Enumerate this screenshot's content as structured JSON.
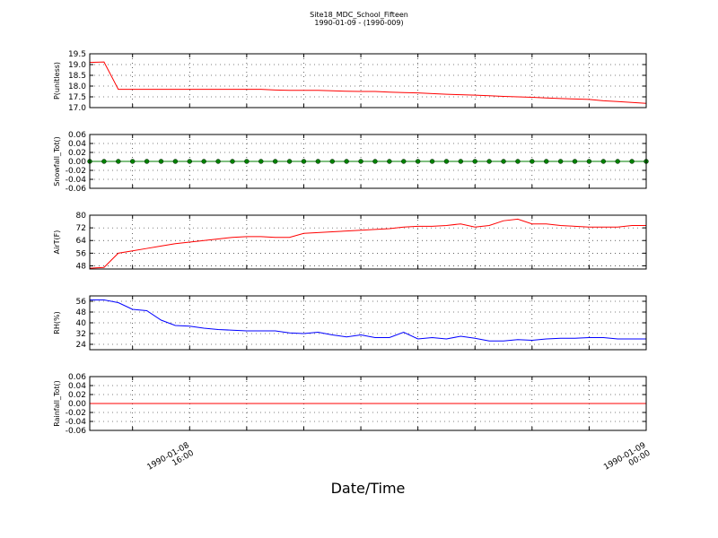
{
  "chart_data": {
    "type": "line",
    "title": "Site18_MDC_School_Fifteen",
    "subtitle": "1990-01-09 - (1990-009)",
    "xlabel": "Date/Time",
    "grid": true,
    "x": [
      "1990-01-08 14:15",
      "1990-01-08 14:30",
      "1990-01-08 14:45",
      "1990-01-08 15:00",
      "1990-01-08 15:15",
      "1990-01-08 15:30",
      "1990-01-08 15:45",
      "1990-01-08 16:00",
      "1990-01-08 16:15",
      "1990-01-08 16:30",
      "1990-01-08 16:45",
      "1990-01-08 17:00",
      "1990-01-08 17:15",
      "1990-01-08 17:30",
      "1990-01-08 17:45",
      "1990-01-08 18:00",
      "1990-01-08 18:15",
      "1990-01-08 18:30",
      "1990-01-08 18:45",
      "1990-01-08 19:00",
      "1990-01-08 19:15",
      "1990-01-08 19:30",
      "1990-01-08 19:45",
      "1990-01-08 20:00",
      "1990-01-08 20:15",
      "1990-01-08 20:30",
      "1990-01-08 20:45",
      "1990-01-08 21:00",
      "1990-01-08 21:15",
      "1990-01-08 21:30",
      "1990-01-08 21:45",
      "1990-01-08 22:00",
      "1990-01-08 22:15",
      "1990-01-08 22:30",
      "1990-01-08 22:45",
      "1990-01-08 23:00",
      "1990-01-08 23:15",
      "1990-01-08 23:30",
      "1990-01-08 23:45",
      "1990-01-09 00:00"
    ],
    "xlim": [
      "1990-01-08 14:15",
      "1990-01-09 00:00"
    ],
    "xticks": [
      {
        "value": "1990-01-08 15:00",
        "label": null
      },
      "1990-01-08 16:00",
      {
        "value": "1990-01-08 17:00",
        "label": null
      },
      {
        "value": "1990-01-08 18:00",
        "label": null
      },
      {
        "value": "1990-01-08 19:00",
        "label": null
      },
      {
        "value": "1990-01-08 20:00",
        "label": null
      },
      {
        "value": "1990-01-08 21:00",
        "label": null
      },
      {
        "value": "1990-01-08 22:00",
        "label": null
      },
      {
        "value": "1990-01-08 23:00",
        "label": null
      },
      "1990-01-09 00:00"
    ],
    "panels": [
      {
        "ylabel": "P(unitless)",
        "ylim": [
          17.0,
          19.5
        ],
        "yticks": [
          {
            "value": 17,
            "label": "17.0"
          },
          17.5,
          {
            "value": 18,
            "label": "18.0"
          },
          18.5,
          {
            "value": 19,
            "label": "19.0"
          },
          19.5
        ],
        "series": [
          {
            "color": "#ff0000",
            "markers": false,
            "values": [
              19.1,
              19.12,
              17.85,
              17.85,
              17.85,
              17.85,
              17.85,
              17.85,
              17.85,
              17.85,
              17.85,
              17.85,
              17.85,
              17.82,
              17.8,
              17.8,
              17.8,
              17.78,
              17.76,
              17.75,
              17.75,
              17.72,
              17.7,
              17.68,
              17.65,
              17.62,
              17.6,
              17.58,
              17.55,
              17.52,
              17.5,
              17.48,
              17.45,
              17.42,
              17.4,
              17.38,
              17.32,
              17.28,
              17.24,
              17.2
            ]
          }
        ]
      },
      {
        "ylabel": "Snowfall_Tot()",
        "ylim": [
          -0.06,
          0.06
        ],
        "yticks": [
          -0.06,
          -0.04,
          -0.02,
          {
            "value": 0,
            "label": "0.00"
          },
          0.02,
          0.04,
          0.06
        ],
        "series": [
          {
            "color": "#008000",
            "markers": true,
            "values": [
              0,
              0,
              0,
              0,
              0,
              0,
              0,
              0,
              0,
              0,
              0,
              0,
              0,
              0,
              0,
              0,
              0,
              0,
              0,
              0,
              0,
              0,
              0,
              0,
              0,
              0,
              0,
              0,
              0,
              0,
              0,
              0,
              0,
              0,
              0,
              0,
              0,
              0,
              0,
              0
            ]
          }
        ]
      },
      {
        "ylabel": "AirT(F)",
        "ylim": [
          46,
          80
        ],
        "yticks": [
          48,
          56,
          64,
          72,
          80
        ],
        "series": [
          {
            "color": "#ff0000",
            "markers": false,
            "values": [
              46.5,
              47,
              56,
              57.5,
              59,
              60.5,
              62,
              63,
              64,
              65,
              66,
              66.5,
              66.5,
              66,
              66,
              68.5,
              69,
              69.5,
              70,
              70.5,
              71,
              71.5,
              72.5,
              73,
              73,
              73.5,
              74.5,
              72.5,
              73.5,
              76.5,
              77.5,
              74.5,
              74.5,
              73.5,
              73,
              72.5,
              72.5,
              72.5,
              73.5,
              73.5
            ]
          }
        ]
      },
      {
        "ylabel": "RH(%)",
        "ylim": [
          20,
          60
        ],
        "yticks": [
          24,
          32,
          40,
          48,
          56
        ],
        "series": [
          {
            "color": "#0000ff",
            "markers": false,
            "values": [
              57,
              57,
              55,
              50,
              49,
              42,
              38,
              37.5,
              36,
              35,
              34.5,
              34,
              34,
              34,
              32.5,
              32,
              33,
              31,
              29.5,
              31,
              29,
              29,
              33,
              28,
              29,
              28,
              30,
              28.5,
              26.5,
              26.5,
              27.5,
              27,
              28,
              28.5,
              28.5,
              29,
              29,
              28,
              28,
              28
            ]
          }
        ]
      },
      {
        "ylabel": "Rainfall_Tot()",
        "ylim": [
          -0.06,
          0.06
        ],
        "yticks": [
          -0.06,
          -0.04,
          -0.02,
          {
            "value": 0,
            "label": "0.00"
          },
          0.02,
          0.04,
          0.06
        ],
        "series": [
          {
            "color": "#ff0000",
            "markers": false,
            "values": [
              0,
              0,
              0,
              0,
              0,
              0,
              0,
              0,
              0,
              0,
              0,
              0,
              0,
              0,
              0,
              0,
              0,
              0,
              0,
              0,
              0,
              0,
              0,
              0,
              0,
              0,
              0,
              0,
              0,
              0,
              0,
              0,
              0,
              0,
              0,
              0,
              0,
              0,
              0,
              0
            ]
          }
        ]
      }
    ]
  }
}
